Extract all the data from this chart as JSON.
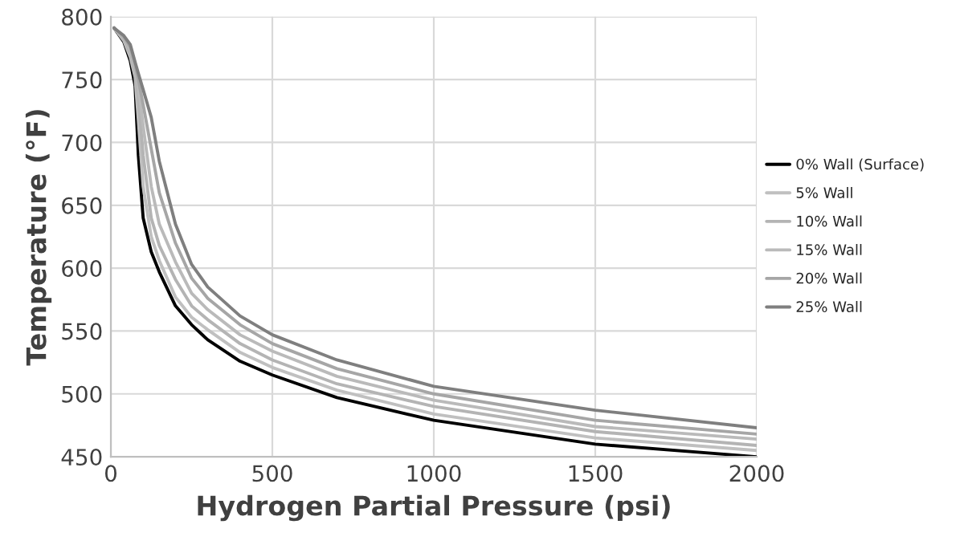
{
  "chart_data": {
    "type": "line",
    "xlabel": "Hydrogen Partial Pressure (psi)",
    "ylabel": "Temperature (°F)",
    "x": [
      10,
      40,
      60,
      75,
      85,
      100,
      125,
      150,
      200,
      250,
      300,
      400,
      500,
      700,
      1000,
      1500,
      2000
    ],
    "series": [
      {
        "name": "0% Wall (Surface)",
        "color": "#000000",
        "values": [
          791,
          780,
          765,
          745,
          690,
          640,
          613,
          597,
          570,
          555,
          543,
          526,
          515,
          497,
          479,
          460,
          450
        ]
      },
      {
        "name": "5% Wall",
        "color": "#c0c0c0",
        "values": [
          791,
          781,
          768,
          752,
          718,
          665,
          625,
          606,
          577,
          561,
          551,
          533,
          521,
          503,
          484,
          465,
          455
        ]
      },
      {
        "name": "10% Wall",
        "color": "#b4b4b4",
        "values": [
          791,
          782,
          771,
          756,
          735,
          690,
          640,
          618,
          591,
          570,
          559,
          540,
          527,
          508,
          490,
          470,
          459
        ]
      },
      {
        "name": "15% Wall",
        "color": "#bababa",
        "values": [
          791,
          783,
          774,
          759,
          745,
          713,
          665,
          635,
          605,
          580,
          567,
          547,
          534,
          514,
          495,
          474,
          464
        ]
      },
      {
        "name": "20% Wall",
        "color": "#a6a6a6",
        "values": [
          791,
          784,
          776,
          762,
          750,
          730,
          695,
          660,
          620,
          592,
          576,
          555,
          540,
          520,
          500,
          479,
          468
        ]
      },
      {
        "name": "25% Wall",
        "color": "#7f7f7f",
        "values": [
          791,
          785,
          778,
          764,
          755,
          742,
          720,
          685,
          635,
          603,
          585,
          562,
          547,
          527,
          506,
          487,
          473
        ]
      }
    ],
    "xlim": [
      0,
      2000
    ],
    "xticks": [
      0,
      500,
      1000,
      1500,
      2000
    ],
    "ylim": [
      450,
      800
    ],
    "yticks": [
      450,
      500,
      550,
      600,
      650,
      700,
      750,
      800
    ],
    "grid": true,
    "legend": "right",
    "marker": "none",
    "line_style": "solid"
  }
}
